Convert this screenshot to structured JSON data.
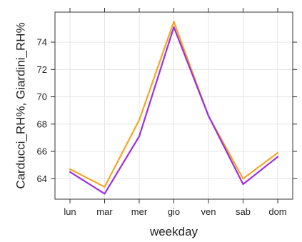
{
  "chart_data": {
    "type": "line",
    "xlabel": "weekday",
    "ylabel": "Carducci_RH%, Giardini_RH%",
    "categories": [
      "lun",
      "mar",
      "mer",
      "gio",
      "ven",
      "sab",
      "dom"
    ],
    "ylim": [
      62.5,
      76.2
    ],
    "yticks": [
      64,
      66,
      68,
      70,
      72,
      74
    ],
    "grid": true,
    "series": [
      {
        "name": "Carducci_RH%",
        "color": "#f5a623",
        "values": [
          64.7,
          63.4,
          68.3,
          75.5,
          68.6,
          64.0,
          65.9
        ]
      },
      {
        "name": "Giardini_RH%",
        "color": "#9b30e0",
        "values": [
          64.5,
          62.9,
          67.1,
          75.1,
          68.6,
          63.6,
          65.6
        ]
      }
    ]
  }
}
